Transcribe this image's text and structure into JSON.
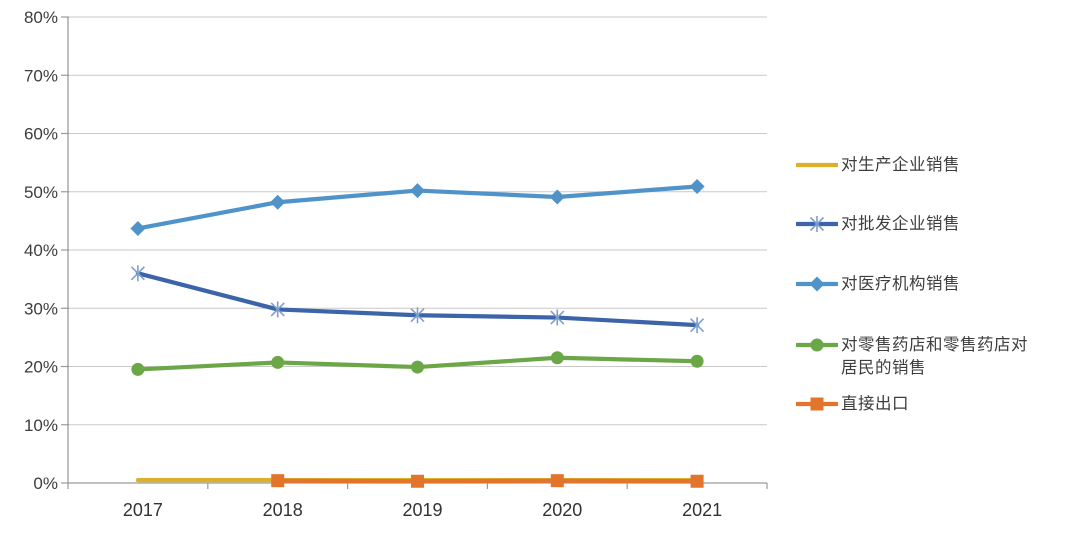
{
  "chart_data": {
    "type": "line",
    "categories": [
      "2017",
      "2018",
      "2019",
      "2020",
      "2021"
    ],
    "series": [
      {
        "name": "对生产企业销售",
        "color": "#ddb02a",
        "marker": "x",
        "marker_color": "#ecd countless",
        "values": [
          0.5,
          0.5,
          0.5,
          0.5,
          0.5
        ]
      },
      {
        "name": "对批发企业销售",
        "color": "#3c64a8",
        "marker": "asterisk",
        "marker_color": "#7e9fce",
        "values": [
          36.0,
          29.8,
          28.8,
          28.4,
          27.1
        ]
      },
      {
        "name": "对医疗机构销售",
        "color": "#4f93c9",
        "marker": "diamond",
        "marker_color": "#4f93c9",
        "values": [
          43.7,
          48.2,
          50.2,
          49.1,
          50.9
        ]
      },
      {
        "name": "对零售药店和零售药店对居民的销售",
        "color": "#6ba747",
        "marker": "circle",
        "marker_color": "#6ba747",
        "values": [
          19.5,
          20.7,
          19.9,
          21.5,
          20.9
        ]
      },
      {
        "name": "直接出口",
        "color": "#e2742c",
        "marker": "square",
        "marker_color": "#e2742c",
        "values": [
          null,
          0.4,
          0.3,
          0.4,
          0.3
        ]
      }
    ],
    "y_ticks": [
      "0%",
      "10%",
      "20%",
      "30%",
      "40%",
      "50%",
      "60%",
      "70%",
      "80%"
    ],
    "ylim": [
      0,
      80
    ],
    "grid": true,
    "legend_position": "right",
    "title": "",
    "xlabel": "",
    "ylabel": "",
    "grid_color": "#c9c9c9",
    "axis_color": "#9b9b9b",
    "text_color": "#3d3d3d"
  }
}
